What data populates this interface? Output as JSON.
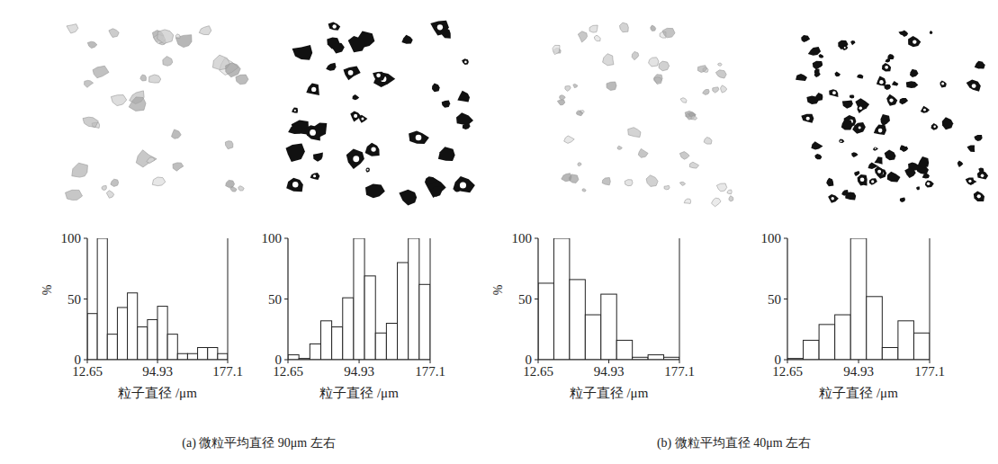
{
  "chart_data": [
    {
      "type": "histogram",
      "y_label": "%",
      "x_label": "粒子直径 /μm",
      "bins": [
        12.65,
        24.4,
        36.14,
        47.89,
        59.64,
        71.38,
        83.13,
        94.88,
        106.62,
        118.37,
        130.11,
        141.86,
        153.61,
        165.35,
        177.1
      ],
      "values": [
        38,
        100,
        21,
        43,
        55,
        27,
        33,
        44,
        21,
        5,
        5,
        10,
        10,
        5
      ],
      "xlim": [
        12.65,
        177.1
      ],
      "xticks": [
        12.65,
        94.93,
        177.1
      ],
      "ylim": [
        0,
        100
      ],
      "yticks": [
        0,
        50,
        100
      ],
      "color": "#ffffff"
    },
    {
      "type": "histogram",
      "x_label": "粒子直径 /μm",
      "bins": [
        12.65,
        25.3,
        37.95,
        50.6,
        63.25,
        75.9,
        88.55,
        101.2,
        113.85,
        126.5,
        139.15,
        151.8,
        164.45,
        177.1
      ],
      "values": [
        4,
        1,
        13,
        32,
        27,
        51,
        100,
        69,
        22,
        30,
        80,
        100,
        62
      ],
      "xlim": [
        12.65,
        177.1
      ],
      "xticks": [
        12.65,
        94.93,
        177.1
      ],
      "ylim": [
        0,
        100
      ],
      "yticks": [
        0,
        50,
        100
      ],
      "color": "#ffffff"
    },
    {
      "type": "histogram",
      "y_label": "%",
      "x_label": "粒子直径 /μm",
      "bins": [
        12.65,
        30.92,
        49.19,
        67.47,
        85.74,
        104.01,
        122.28,
        140.56,
        158.83,
        177.1
      ],
      "values": [
        63,
        100,
        66,
        37,
        54,
        16,
        2,
        4,
        2
      ],
      "xlim": [
        12.65,
        177.1
      ],
      "xticks": [
        12.65,
        94.93,
        177.1
      ],
      "ylim": [
        0,
        100
      ],
      "yticks": [
        0,
        50,
        100
      ],
      "color": "#ffffff"
    },
    {
      "type": "histogram",
      "x_label": "粒子直径 /μm",
      "bins": [
        12.65,
        30.92,
        49.19,
        67.47,
        85.74,
        104.01,
        122.28,
        140.56,
        158.83,
        177.1
      ],
      "values": [
        1,
        16,
        29,
        37,
        100,
        52,
        10,
        32,
        22
      ],
      "xlim": [
        12.65,
        177.1
      ],
      "xticks": [
        12.65,
        94.93,
        177.1
      ],
      "ylim": [
        0,
        100
      ],
      "yticks": [
        0,
        50,
        100
      ],
      "color": "#ffffff"
    }
  ],
  "figure": {
    "captions": [
      "(a) 微粒平均直径 90μm 左右",
      "(b) 微粒平均直径 40μm 左右"
    ]
  }
}
